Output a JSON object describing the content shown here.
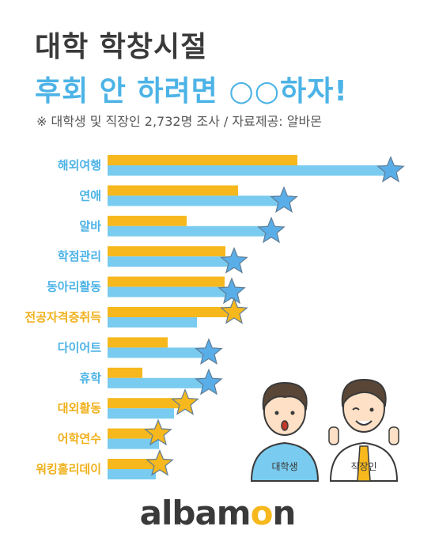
{
  "header": {
    "title_line1": "대학 학창시절",
    "title_line2": "후회 안 하려면 ○○하자!",
    "subtitle": "※ 대학생 및 직장인 2,732명 조사  / 자료제공: 알바몬"
  },
  "colors": {
    "student": "#f6b81d",
    "worker": "#79cbef",
    "star": "#5aaee8",
    "star_gold": "#f6b81d",
    "label_blue": "#4cb3e6",
    "label_gold": "#f0b01a"
  },
  "chart_data": {
    "type": "bar",
    "orientation": "horizontal",
    "categories": [
      "해외여행",
      "연애",
      "알바",
      "학점관리",
      "동아리활동",
      "전공자격증취득",
      "다이어트",
      "휴학",
      "대외활동",
      "어학연수",
      "워킹홀리데이"
    ],
    "series": [
      {
        "values": [
          24.0,
          16.5,
          10.0,
          14.9,
          14.8,
          15.8,
          7.6,
          4.4,
          9.6,
          6.2,
          6.4
        ]
      },
      {
        "values": [
          35.6,
          22.1,
          20.5,
          15.8,
          15.5,
          11.3,
          12.6,
          12.6,
          8.4,
          6.5,
          6.1
        ]
      }
    ],
    "starred_series": [
      1,
      1,
      1,
      1,
      1,
      0,
      1,
      1,
      0,
      0,
      0
    ],
    "category_label_color": [
      "blue",
      "blue",
      "blue",
      "blue",
      "blue",
      "gold",
      "blue",
      "blue",
      "gold",
      "gold",
      "gold"
    ],
    "xlim": [
      0,
      36
    ]
  },
  "illustration": {
    "student_label": "대학생",
    "worker_label": "직장인"
  },
  "brand": {
    "logo_pre": "albam",
    "logo_accent": "o",
    "logo_post": "n"
  }
}
